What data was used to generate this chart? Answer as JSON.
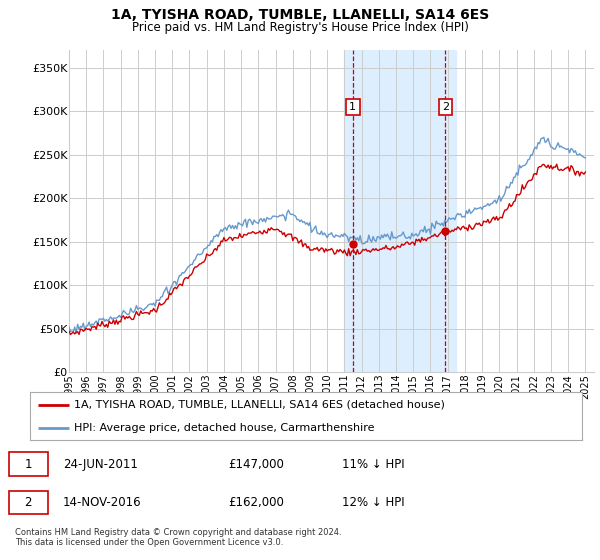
{
  "title": "1A, TYISHA ROAD, TUMBLE, LLANELLI, SA14 6ES",
  "subtitle": "Price paid vs. HM Land Registry's House Price Index (HPI)",
  "ylabel_ticks": [
    "£0",
    "£50K",
    "£100K",
    "£150K",
    "£200K",
    "£250K",
    "£300K",
    "£350K"
  ],
  "ytick_values": [
    0,
    50000,
    100000,
    150000,
    200000,
    250000,
    300000,
    350000
  ],
  "ylim": [
    0,
    370000
  ],
  "xlim_start": 1995,
  "xlim_end": 2025.5,
  "marker1_date": 2011.48,
  "marker2_date": 2016.87,
  "shade_start": 2011.0,
  "shade_end": 2017.5,
  "legend_property": "1A, TYISHA ROAD, TUMBLE, LLANELLI, SA14 6ES (detached house)",
  "legend_hpi": "HPI: Average price, detached house, Carmarthenshire",
  "footer": "Contains HM Land Registry data © Crown copyright and database right 2024.\nThis data is licensed under the Open Government Licence v3.0.",
  "property_color": "#cc0000",
  "hpi_color": "#6699cc",
  "shade_color": "#ddeeff",
  "grid_color": "#cccccc",
  "bg_color": "#ffffff"
}
